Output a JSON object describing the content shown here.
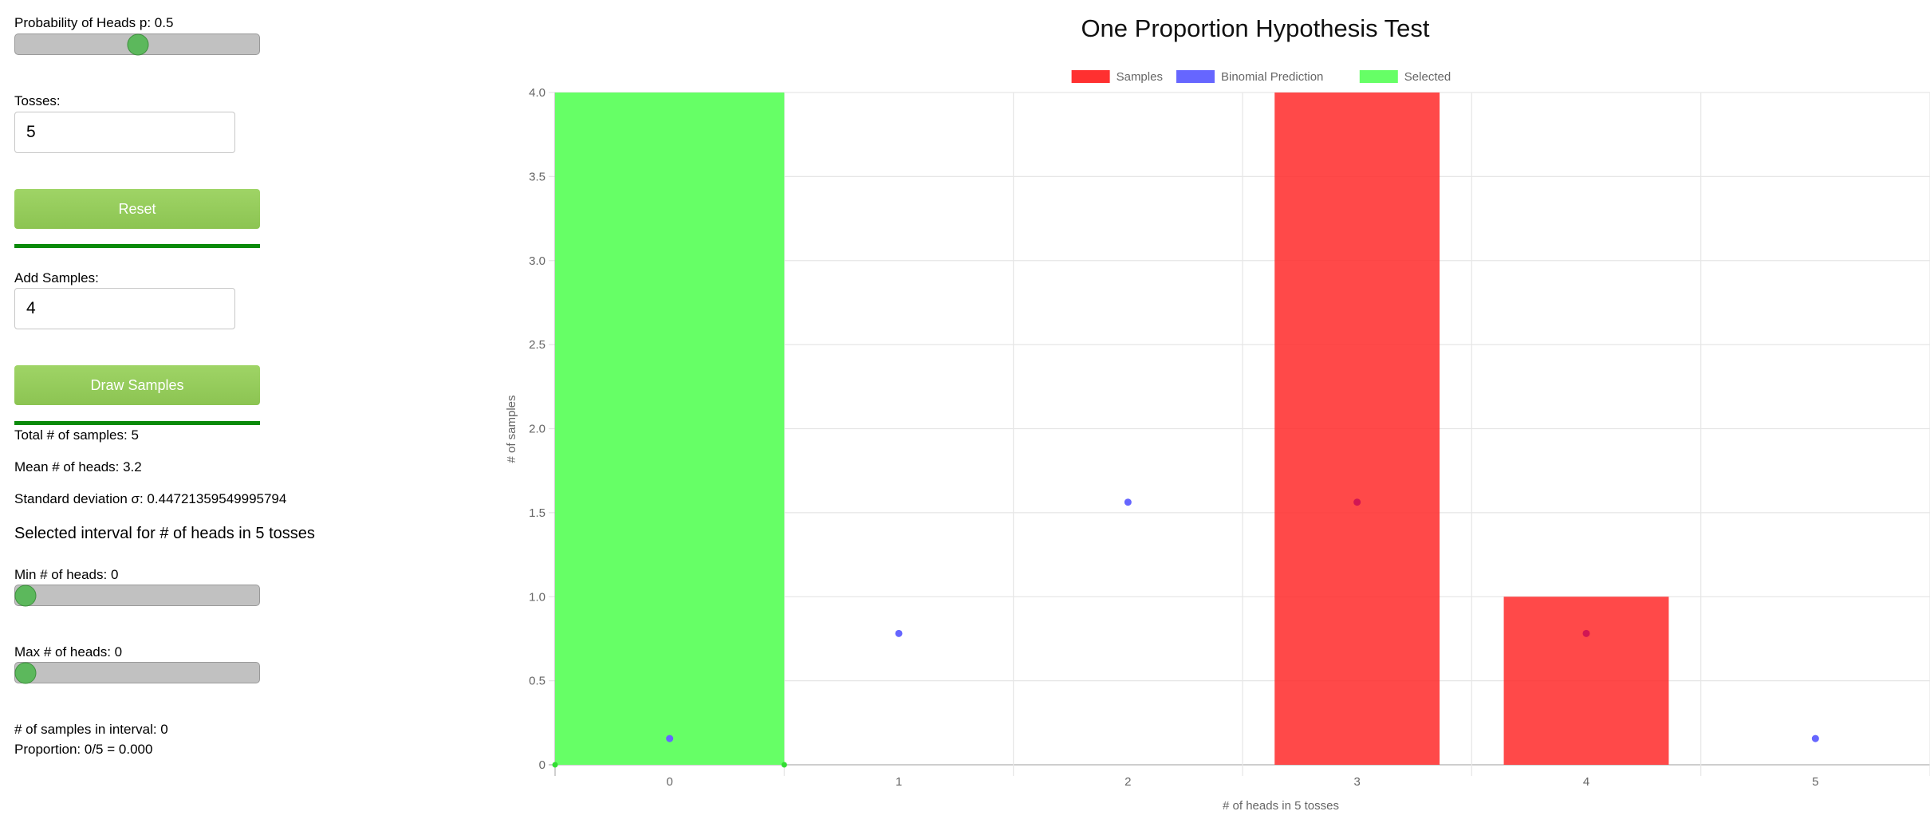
{
  "controls": {
    "prob_label": "Probability of Heads p: 0.5",
    "prob_value": 0.5,
    "tosses_label": "Tosses:",
    "tosses_value": "5",
    "reset_label": "Reset",
    "add_samples_label": "Add Samples:",
    "add_samples_value": "4",
    "draw_label": "Draw Samples"
  },
  "stats": {
    "total": "Total # of samples: 5",
    "mean": "Mean # of heads: 3.2",
    "std": "Standard deviation σ: 0.44721359549995794",
    "interval_title": "Selected interval for # of heads in 5 tosses",
    "min_label": "Min # of heads: 0",
    "min_value": 0,
    "max_label": "Max # of heads: 0",
    "max_value": 0,
    "in_interval": "# of samples in interval: 0",
    "proportion": "Proportion: 0/5 = 0.000"
  },
  "slider_range": {
    "min": 0,
    "max": 5
  },
  "colors": {
    "samples": "#ff3030",
    "binomial": "#6666ff",
    "selected": "#66ff66",
    "slider_knob": "#5cb85c",
    "button": "#8cc452",
    "divider": "#0a8a0a"
  },
  "chart_data": {
    "type": "bar",
    "title": "One Proportion Hypothesis Test",
    "xlabel": "# of heads in 5 tosses",
    "ylabel": "# of samples",
    "categories": [
      "0",
      "1",
      "2",
      "3",
      "4",
      "5"
    ],
    "ylim": [
      0,
      4
    ],
    "yticks": [
      0,
      0.5,
      1.0,
      1.5,
      2.0,
      2.5,
      3.0,
      3.5,
      4.0
    ],
    "ytick_labels": [
      "0",
      "0.5",
      "1.0",
      "1.5",
      "2.0",
      "2.5",
      "3.0",
      "3.5",
      "4.0"
    ],
    "legend_position": "top-center",
    "grid": true,
    "series": [
      {
        "name": "Samples",
        "type": "bar",
        "values": [
          0,
          0,
          0,
          4,
          1,
          0
        ]
      },
      {
        "name": "Binomial Prediction",
        "type": "scatter",
        "values": [
          0.15625,
          0.78125,
          1.5625,
          1.5625,
          0.78125,
          0.15625
        ]
      },
      {
        "name": "Selected",
        "type": "bar",
        "values": [
          4,
          0,
          0,
          0,
          0,
          0
        ]
      }
    ]
  }
}
